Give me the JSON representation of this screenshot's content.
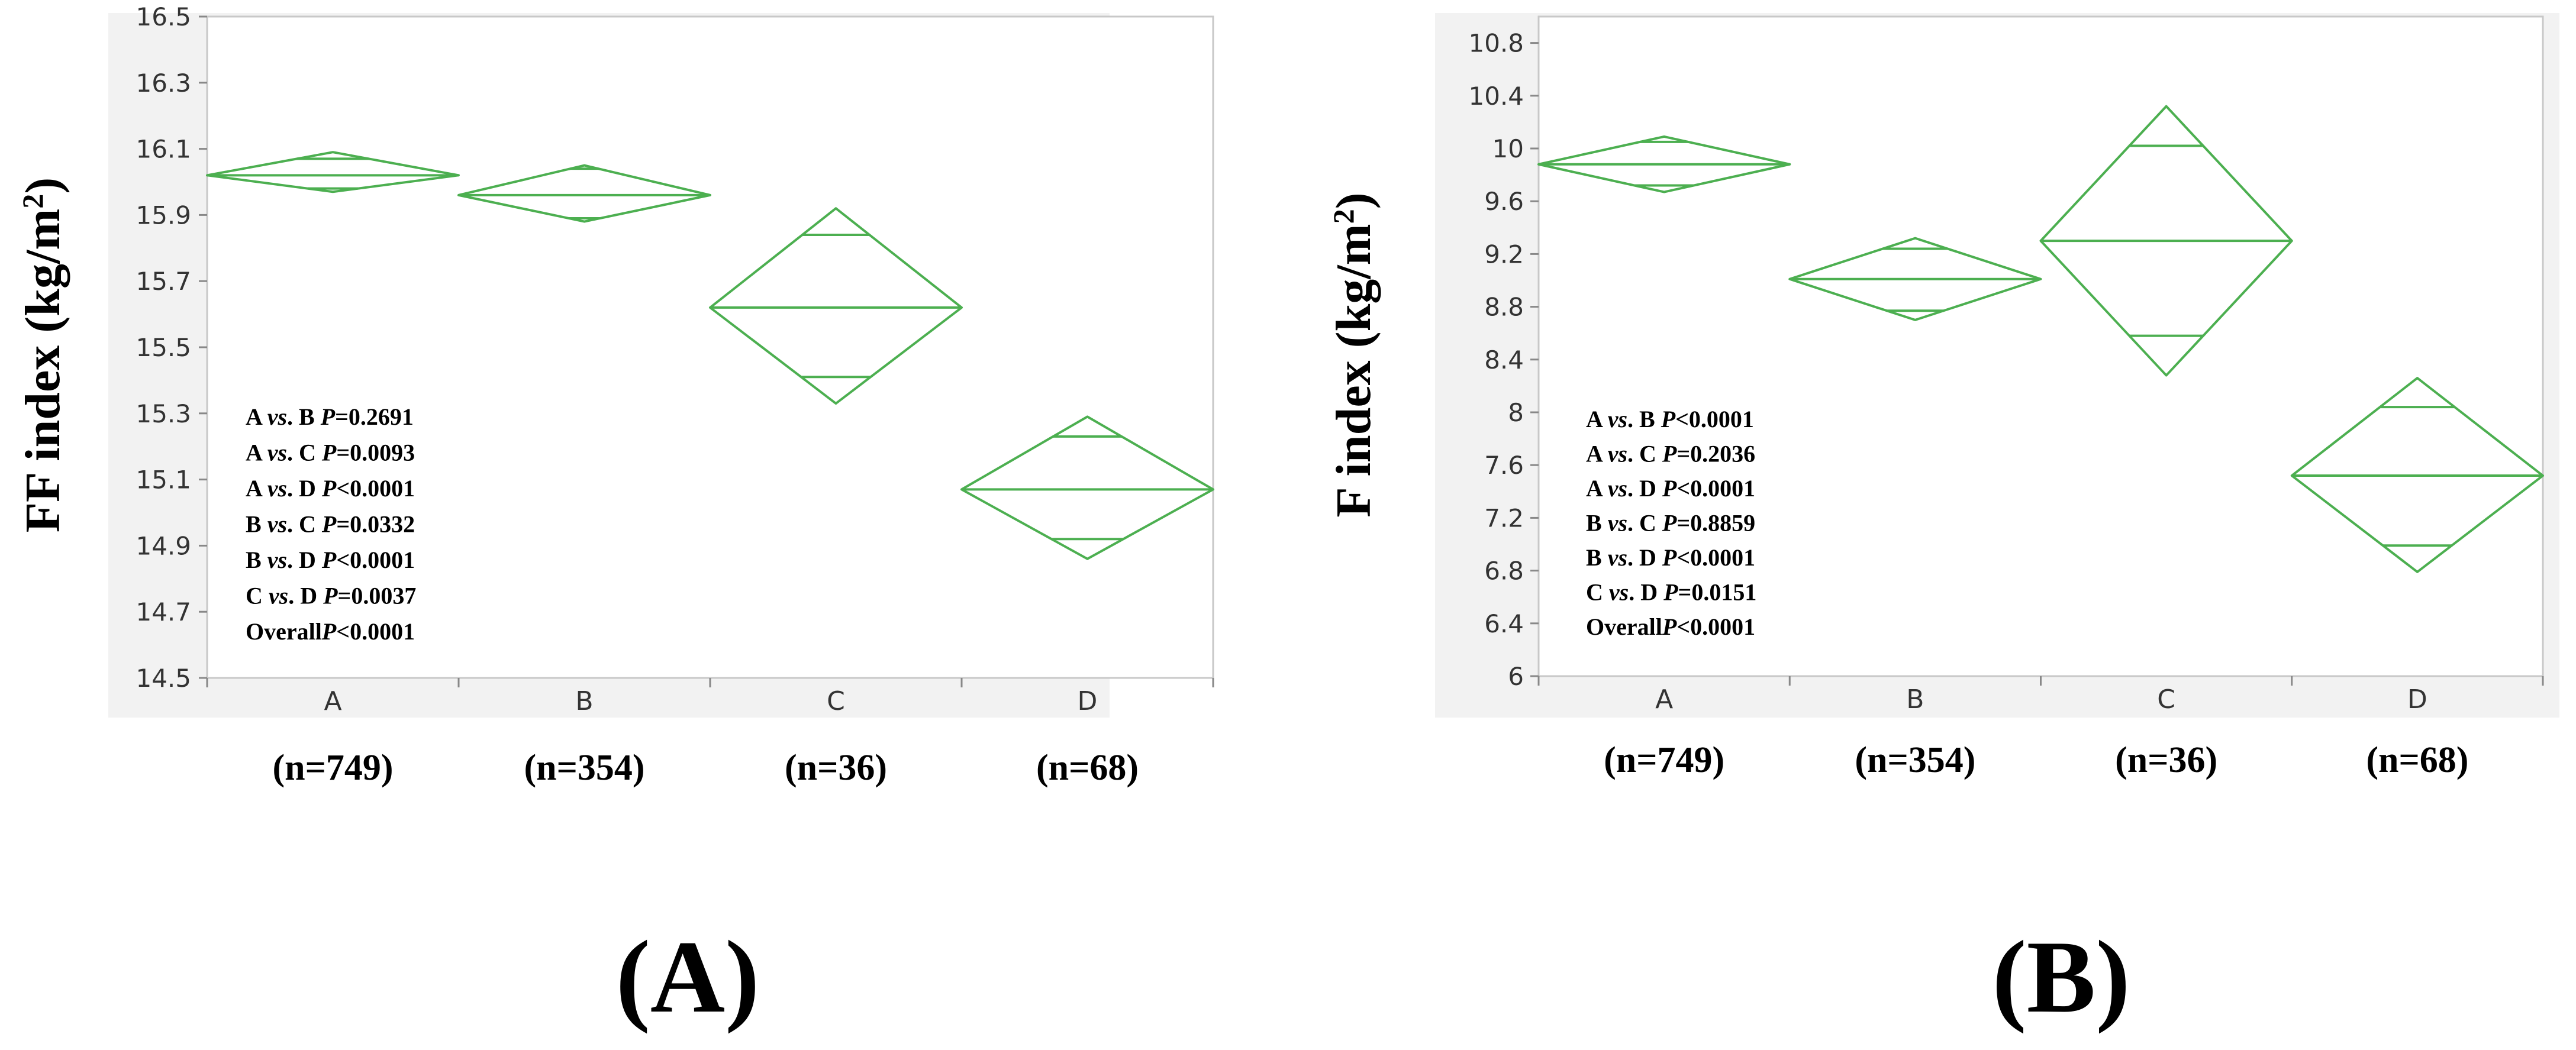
{
  "chart_data": [
    {
      "type": "diamond",
      "panel_label": "(A)",
      "ylabel": "FF index (kg/m²)",
      "ylabel_main": "FF index (kg/m",
      "ylabel_sup": "2",
      "ylabel_end": ")",
      "ylim": [
        14.5,
        16.5
      ],
      "yticks": [
        "16.5",
        "16.3",
        "16.1",
        "15.9",
        "15.7",
        "15.5",
        "15.3",
        "15.1",
        "14.9",
        "14.7",
        "14.5"
      ],
      "categories": [
        "A",
        "B",
        "C",
        "D"
      ],
      "n_labels": [
        "(n=749)",
        "(n=354)",
        "(n=36)",
        "(n=68)"
      ],
      "series": [
        {
          "group": "A",
          "mean": 16.02,
          "ci_upper": 16.09,
          "ci_lower": 15.97,
          "overlap_upper": 16.07,
          "overlap_lower": 15.98
        },
        {
          "group": "B",
          "mean": 15.96,
          "ci_upper": 16.05,
          "ci_lower": 15.88,
          "overlap_upper": 16.04,
          "overlap_lower": 15.89
        },
        {
          "group": "C",
          "mean": 15.62,
          "ci_upper": 15.92,
          "ci_lower": 15.33,
          "overlap_upper": 15.84,
          "overlap_lower": 15.41
        },
        {
          "group": "D",
          "mean": 15.07,
          "ci_upper": 15.29,
          "ci_lower": 14.86,
          "overlap_upper": 15.23,
          "overlap_lower": 14.92
        }
      ],
      "annotations": [
        {
          "pair": "A ",
          "vs": "vs",
          "pair_end": ". B ",
          "p_label": "P",
          "p_value": "=0.2691"
        },
        {
          "pair": "A ",
          "vs": "vs",
          "pair_end": ". C ",
          "p_label": "P",
          "p_value": "=0.0093"
        },
        {
          "pair": "A ",
          "vs": "vs",
          "pair_end": ". D ",
          "p_label": "P",
          "p_value": "<0.0001"
        },
        {
          "pair": "B ",
          "vs": "vs",
          "pair_end": ". C ",
          "p_label": "P",
          "p_value": "=0.0332"
        },
        {
          "pair": "B ",
          "vs": "vs",
          "pair_end": ". D ",
          "p_label": "P",
          "p_value": "<0.0001"
        },
        {
          "pair": "C ",
          "vs": "vs",
          "pair_end": ". D ",
          "p_label": "P",
          "p_value": "=0.0037"
        },
        {
          "pair": "Overall",
          "vs": "",
          "pair_end": "",
          "p_label": "P",
          "p_value": "<0.0001"
        }
      ]
    },
    {
      "type": "diamond",
      "panel_label": "(B)",
      "ylabel": "F index (kg/m²)",
      "ylabel_main": "F index (kg/m",
      "ylabel_sup": "2",
      "ylabel_end": ")",
      "ylim": [
        6,
        11
      ],
      "yticks": [
        "10.8",
        "10.4",
        "10",
        "9.6",
        "9.2",
        "8.8",
        "8.4",
        "8",
        "7.6",
        "7.2",
        "6.8",
        "6.4",
        "6"
      ],
      "categories": [
        "A",
        "B",
        "C",
        "D"
      ],
      "n_labels": [
        "(n=749)",
        "(n=354)",
        "(n=36)",
        "(n=68)"
      ],
      "series": [
        {
          "group": "A",
          "mean": 9.88,
          "ci_upper": 10.09,
          "ci_lower": 9.67,
          "overlap_upper": 10.05,
          "overlap_lower": 9.72
        },
        {
          "group": "B",
          "mean": 9.01,
          "ci_upper": 9.32,
          "ci_lower": 8.7,
          "overlap_upper": 9.24,
          "overlap_lower": 8.77
        },
        {
          "group": "C",
          "mean": 9.3,
          "ci_upper": 10.32,
          "ci_lower": 8.28,
          "overlap_upper": 10.02,
          "overlap_lower": 8.58
        },
        {
          "group": "D",
          "mean": 7.52,
          "ci_upper": 8.26,
          "ci_lower": 6.79,
          "overlap_upper": 8.04,
          "overlap_lower": 6.99
        }
      ],
      "annotations": [
        {
          "pair": "A ",
          "vs": "vs",
          "pair_end": ". B ",
          "p_label": "P",
          "p_value": "<0.0001"
        },
        {
          "pair": "A ",
          "vs": "vs",
          "pair_end": ". C ",
          "p_label": "P",
          "p_value": "=0.2036"
        },
        {
          "pair": "A ",
          "vs": "vs",
          "pair_end": ". D ",
          "p_label": "P",
          "p_value": "<0.0001"
        },
        {
          "pair": "B ",
          "vs": "vs",
          "pair_end": ". C ",
          "p_label": "P",
          "p_value": "=0.8859"
        },
        {
          "pair": "B ",
          "vs": "vs",
          "pair_end": ". D ",
          "p_label": "P",
          "p_value": "<0.0001"
        },
        {
          "pair": "C ",
          "vs": "vs",
          "pair_end": ". D ",
          "p_label": "P",
          "p_value": "=0.0151"
        },
        {
          "pair": "Overall",
          "vs": "",
          "pair_end": "",
          "p_label": "P",
          "p_value": "<0.0001"
        }
      ]
    }
  ],
  "colors": {
    "diamond": "#4caf50",
    "frame": "#c8c8c8",
    "plot_bg": "#ffffff",
    "outer_bg": "#f2f2f2"
  }
}
